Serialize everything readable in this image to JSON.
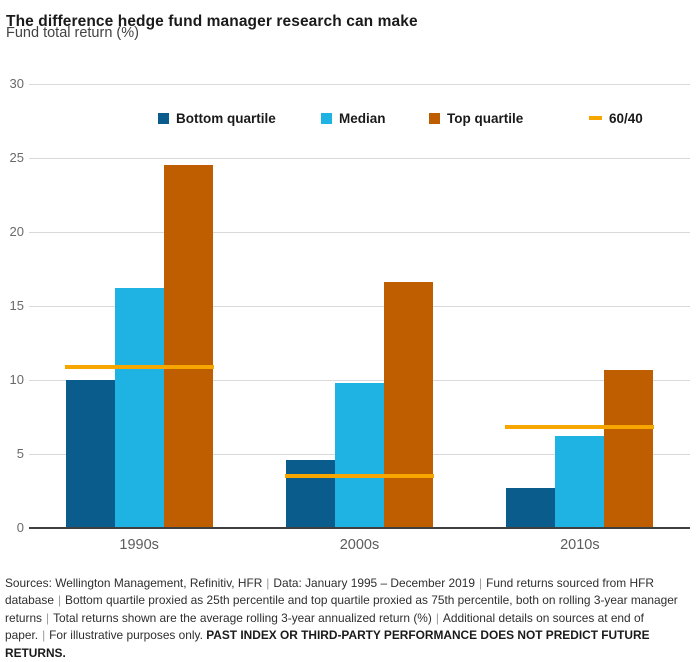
{
  "title": "The difference hedge fund manager research can make",
  "subtitle": "Fund total return (%)",
  "colors": {
    "bottom_quartile": "#0a5c8c",
    "median": "#1fb3e3",
    "top_quartile": "#bf5e00",
    "benchmark_60_40": "#f7a600",
    "gridline": "#d9d9d9",
    "axis_line": "#3f3f3f",
    "tick_label": "#6a6a6a",
    "text": "#1a1a1a"
  },
  "chart_data": {
    "type": "bar",
    "title": "The difference hedge fund manager research can make",
    "ylabel": "Fund total return (%)",
    "categories": [
      "1990s",
      "2000s",
      "2010s"
    ],
    "series": [
      {
        "name": "Bottom quartile",
        "color": "#0a5c8c",
        "values": [
          10.0,
          4.6,
          2.7
        ]
      },
      {
        "name": "Median",
        "color": "#1fb3e3",
        "values": [
          16.2,
          9.8,
          6.2
        ]
      },
      {
        "name": "Top quartile",
        "color": "#bf5e00",
        "values": [
          24.5,
          16.6,
          10.7
        ]
      }
    ],
    "benchmark_line": {
      "name": "60/40",
      "color": "#f7a600",
      "values": [
        10.9,
        3.5,
        6.8
      ]
    },
    "ylim": [
      0,
      30
    ],
    "yticks": [
      0,
      5,
      10,
      15,
      20,
      25,
      30
    ],
    "grid": true,
    "legend_position": "top-inside"
  },
  "footer": {
    "segments": [
      "Sources: Wellington Management, Refinitiv, HFR",
      "Data: January 1995 – December 2019",
      "Fund returns sourced from HFR database",
      "Bottom quartile proxied as 25th percentile and top quartile proxied as 75th percentile, both on rolling 3-year manager returns",
      "Total returns shown are the average rolling 3-year annualized return (%)",
      "Additional details on sources at end of paper.",
      "For illustrative purposes only."
    ],
    "bold_note": "PAST INDEX OR THIRD-PARTY PERFORMANCE DOES NOT PREDICT FUTURE RETURNS."
  }
}
